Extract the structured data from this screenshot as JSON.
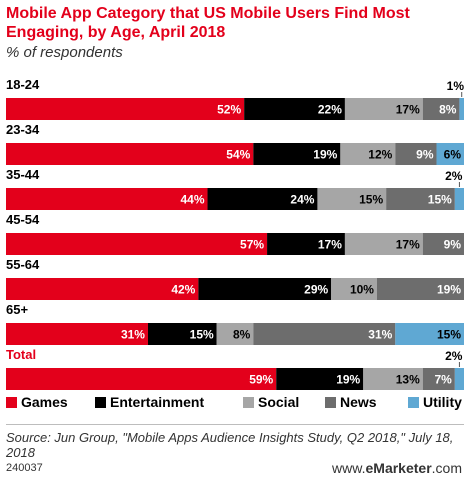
{
  "title": "Mobile App Category that US Mobile Users Find Most Engaging, by Age, April 2018",
  "subtitle": "% of respondents",
  "source": "Source: Jun Group, \"Mobile Apps Audience Insights Study, Q2 2018,\" July 18, 2018",
  "code": "240037",
  "brand": {
    "prefix": "www.",
    "name": "eMarketer",
    "suffix": ".com"
  },
  "colors": {
    "title": "#e3001b",
    "games": "#e3001b",
    "entertainment": "#000000",
    "social": "#a6a6a6",
    "news": "#6d6d6d",
    "utility": "#5fa8d3"
  },
  "chart_data": {
    "type": "bar",
    "orientation": "horizontal",
    "stacked": true,
    "categories": [
      "18-24",
      "23-34",
      "35-44",
      "45-54",
      "55-64",
      "65+",
      "Total"
    ],
    "series": [
      {
        "name": "Games",
        "color": "#e3001b",
        "values": [
          52,
          54,
          44,
          57,
          42,
          31,
          59
        ]
      },
      {
        "name": "Entertainment",
        "color": "#000000",
        "values": [
          22,
          19,
          24,
          17,
          29,
          15,
          19
        ]
      },
      {
        "name": "Social",
        "color": "#a6a6a6",
        "values": [
          17,
          12,
          15,
          17,
          10,
          8,
          13
        ]
      },
      {
        "name": "News",
        "color": "#6d6d6d",
        "values": [
          8,
          9,
          15,
          9,
          19,
          31,
          7
        ]
      },
      {
        "name": "Utility",
        "color": "#5fa8d3",
        "values": [
          1,
          6,
          2,
          0,
          0,
          15,
          2
        ]
      }
    ],
    "data_labels": "inside bar end, small values labeled above bar end",
    "legend": "bottom",
    "xlim": [
      0,
      100
    ]
  }
}
